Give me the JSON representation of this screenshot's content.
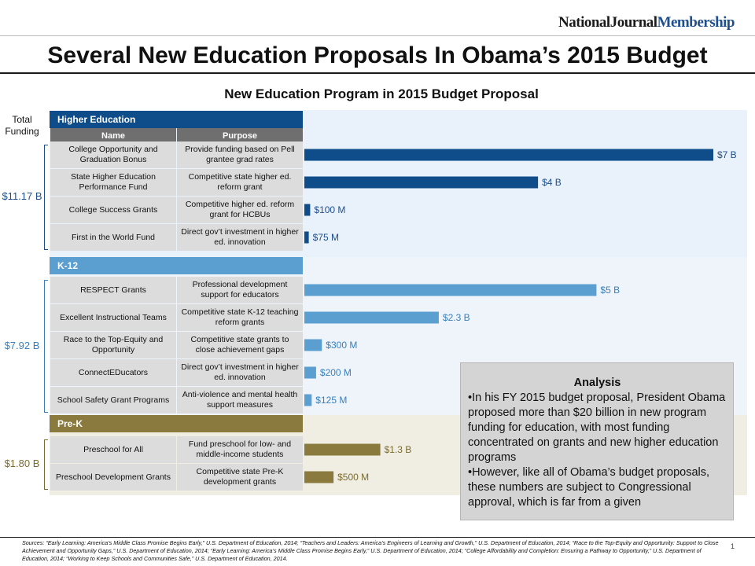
{
  "brand": {
    "part1": "NationalJournal",
    "part2": "Membership"
  },
  "title": "Several New Education Proposals In Obama’s 2015 Budget",
  "subtitle": "New Education Program in 2015 Budget Proposal",
  "total_funding_label_line1": "Total",
  "total_funding_label_line2": "Funding",
  "column_headers": {
    "name": "Name",
    "purpose": "Purpose"
  },
  "colors": {
    "higher_ed": "#0f4c8a",
    "k12": "#5a9fd0",
    "prek": "#8a7a3e",
    "higher_ed_bg": "#e9f2fa",
    "k12_bg": "#eef4fa",
    "prek_bg": "#f0ede3",
    "higher_ed_label": "#1f4e8c",
    "k12_label": "#3a7fba",
    "prek_label": "#7a6b30"
  },
  "chart_data": {
    "type": "bar",
    "title": "New Education Program in 2015 Budget Proposal",
    "unit": "USD",
    "groups": [
      {
        "name": "Higher Education",
        "total": "$11.17 B",
        "items": [
          {
            "name": "College Opportunity and Graduation Bonus",
            "purpose": "Provide funding based on Pell grantee grad rates",
            "value_millions": 7000,
            "label": "$7 B"
          },
          {
            "name": "State Higher Education Performance Fund",
            "purpose": "Competitive state higher ed. reform grant",
            "value_millions": 4000,
            "label": "$4 B"
          },
          {
            "name": "College Success Grants",
            "purpose": "Competitive higher ed. reform grant for HCBUs",
            "value_millions": 100,
            "label": "$100 M"
          },
          {
            "name": "First in the World Fund",
            "purpose": "Direct gov’t investment in higher ed. innovation",
            "value_millions": 75,
            "label": "$75 M"
          }
        ]
      },
      {
        "name": "K-12",
        "total": "$7.92 B",
        "items": [
          {
            "name": "RESPECT Grants",
            "purpose": "Professional development support for educators",
            "value_millions": 5000,
            "label": "$5 B"
          },
          {
            "name": "Excellent Instructional Teams",
            "purpose": "Competitive state K-12 teaching reform grants",
            "value_millions": 2300,
            "label": "$2.3 B"
          },
          {
            "name": "Race to the Top-Equity and Opportunity",
            "purpose": "Competitive state grants to close achievement gaps",
            "value_millions": 300,
            "label": "$300 M"
          },
          {
            "name": "ConnectEDucators",
            "purpose": "Direct gov’t investment in higher ed. innovation",
            "value_millions": 200,
            "label": "$200 M"
          },
          {
            "name": "School Safety Grant Programs",
            "purpose": "Anti-violence and mental health support measures",
            "value_millions": 125,
            "label": "$125 M"
          }
        ]
      },
      {
        "name": "Pre-K",
        "total": "$1.80 B",
        "items": [
          {
            "name": "Preschool for All",
            "purpose": "Fund preschool for low- and middle-income students",
            "value_millions": 1300,
            "label": "$1.3 B"
          },
          {
            "name": "Preschool Development Grants",
            "purpose": "Competitive state Pre-K development grants",
            "value_millions": 500,
            "label": "$500 M"
          }
        ]
      }
    ]
  },
  "analysis": {
    "heading": "Analysis",
    "bullets": [
      "•In his FY 2015 budget proposal, President Obama proposed more than $20 billion in new program funding for education, with most funding concentrated on grants and new higher education programs",
      "•However, like all of Obama’s budget proposals, these numbers are subject to Congressional approval, which is far from a given"
    ]
  },
  "sources": "Sources: “Early Learning: America’s Middle Class Promise Begins Early,” U.S. Department of Education, 2014; “Teachers and Leaders: America’s Engineers of Learning and Growth,” U.S. Department of Education, 2014; “Race to the Top-Equity and Opportunity: Support to Close Achievement and Opportunity Gaps,” U.S. Department of Education, 2014; “Early Learning: America’s Middle Class Promise Begins Early,” U.S. Department of Education, 2014; “College Affordability and Completion: Ensuring a Pathway to Opportunity,” U.S. Department of Education, 2014; “Working to Keep Schools and Communities Safe,” U.S. Department of Education, 2014.",
  "page_number": "1"
}
